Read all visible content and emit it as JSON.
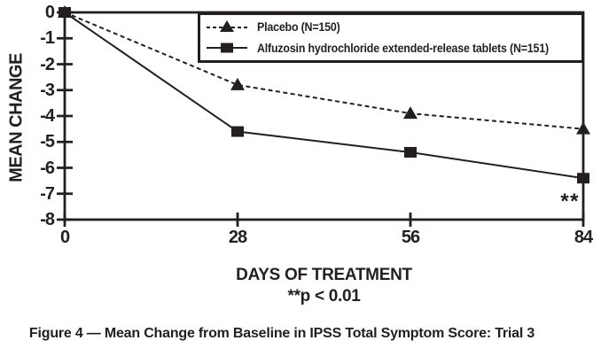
{
  "figure": {
    "caption": "Figure 4 — Mean Change from Baseline in IPSS Total Symptom Score: Trial 3"
  },
  "chart_data": {
    "type": "line",
    "xlabel": "DAYS OF TREATMENT",
    "ylabel": "MEAN CHANGE",
    "significance_note": "**p < 0.01",
    "x": [
      0,
      28,
      56,
      84
    ],
    "x_tick_labels": [
      "0",
      "28",
      "56",
      "84"
    ],
    "xlim": [
      0,
      84
    ],
    "ylim": [
      -8,
      0
    ],
    "yticks": [
      0,
      -1,
      -2,
      -3,
      -4,
      -5,
      -6,
      -7,
      -8
    ],
    "grid": false,
    "legend_position": "inside-top-right",
    "series": [
      {
        "name": "Placebo (N=150)",
        "values": [
          0,
          -2.8,
          -3.9,
          -4.5
        ],
        "line_style": "dashed",
        "marker": "triangle"
      },
      {
        "name": "Alfuzosin hydrochloride extended-release tablets (N=151)",
        "values": [
          0,
          -4.6,
          -5.4,
          -6.4
        ],
        "line_style": "solid",
        "marker": "square"
      }
    ],
    "annotations": [
      {
        "text": "**",
        "x": 84,
        "y": -7.3
      }
    ],
    "ink_color": "#231f20",
    "background_color": "#ffffff"
  }
}
